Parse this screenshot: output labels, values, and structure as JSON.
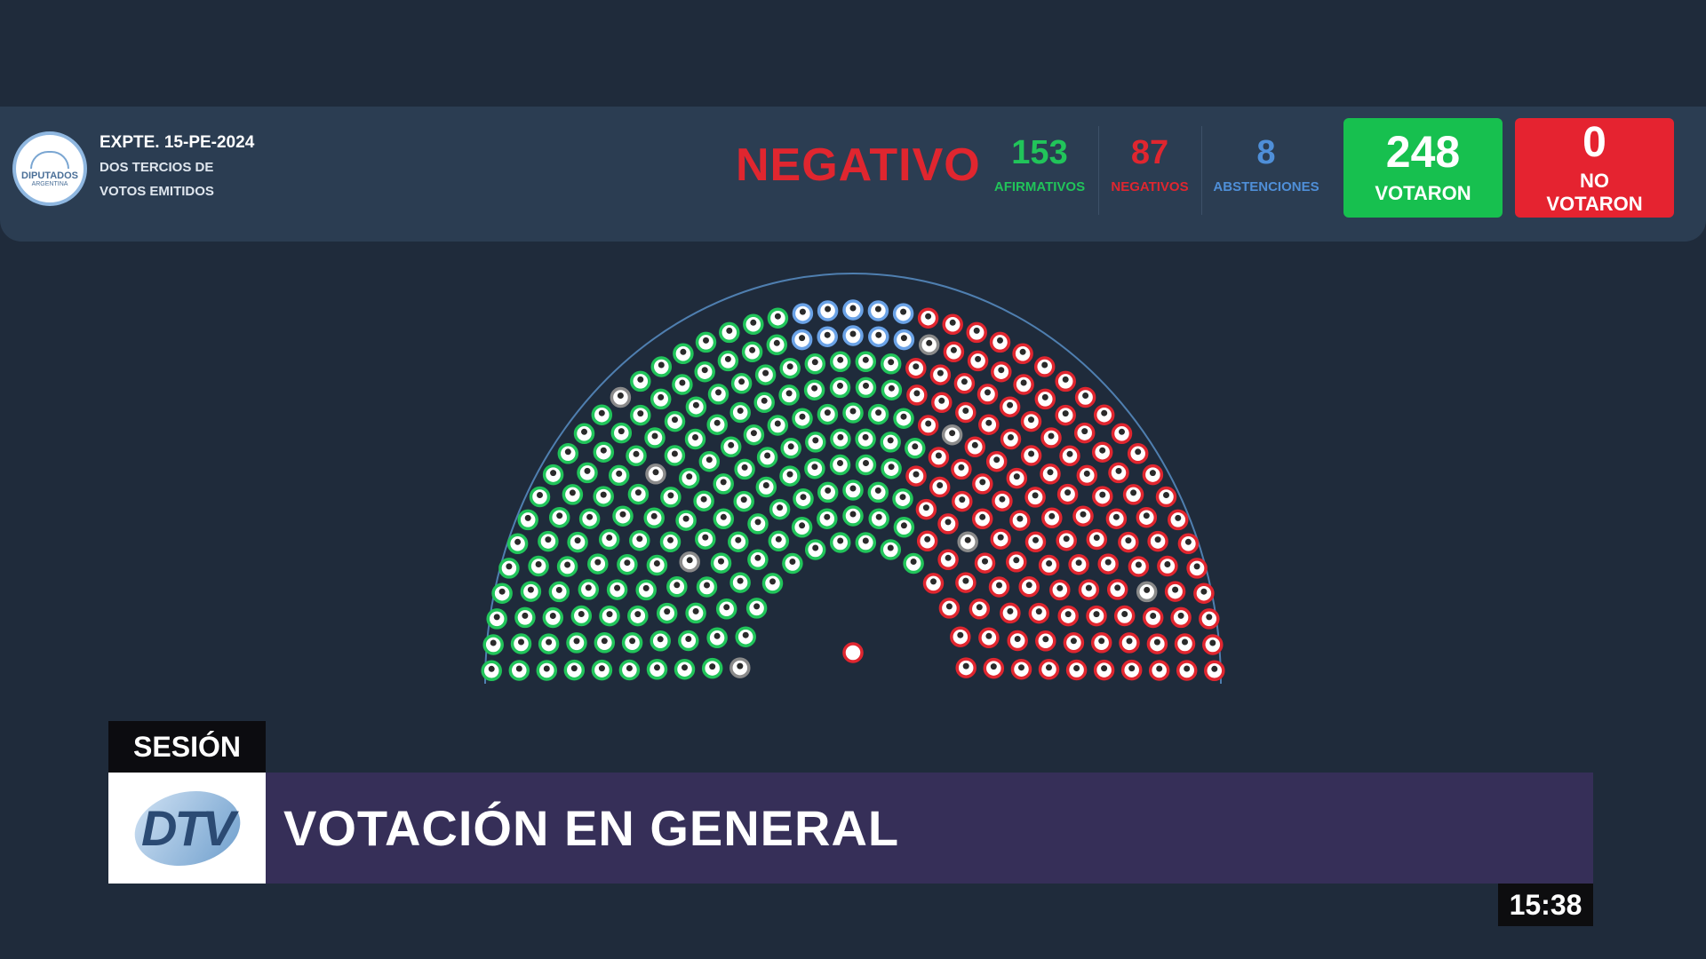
{
  "header": {
    "logo": {
      "line1": "DIPUTADOS",
      "line2": "ARGENTINA"
    },
    "expte": "EXPTE. 15-PE-2024",
    "requirement_line1": "DOS TERCIOS DE",
    "requirement_line2": "VOTOS EMITIDOS",
    "result": "NEGATIVO",
    "afirmativos": {
      "value": "153",
      "label": "AFIRMATIVOS",
      "color": "#21c45a"
    },
    "negativos": {
      "value": "87",
      "label": "NEGATIVOS",
      "color": "#e0262f"
    },
    "abstenciones": {
      "value": "8",
      "label": "ABSTENCIONES",
      "color": "#4f8fd8"
    },
    "votaron": {
      "value": "248",
      "label": "VOTARON"
    },
    "no_votaron": {
      "value": "0",
      "label_line1": "NO",
      "label_line2": "VOTARON"
    }
  },
  "chamber": {
    "seat_colors": {
      "afirmativo": "#21c45a",
      "negativo": "#e0262f",
      "abstencion": "#6aa2e6",
      "ausente": "#8a8a8a"
    },
    "left_block": "afirmativo",
    "right_block": "negativo"
  },
  "lower_third": {
    "tab": "SESIÓN",
    "logo_text": "DTV",
    "title": "VOTACIÓN EN GENERAL"
  },
  "clock": "15:38"
}
